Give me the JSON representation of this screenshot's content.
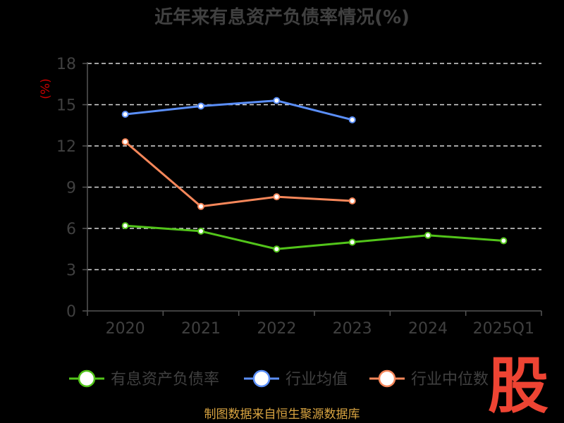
{
  "chart_data": {
    "type": "line",
    "title": "近年来有息资产负债率情况(%)",
    "ylabel": "(%)",
    "categories": [
      "2020",
      "2021",
      "2022",
      "2023",
      "2024",
      "2025Q1"
    ],
    "ylim": [
      0,
      18
    ],
    "yticks": [
      0,
      3,
      6,
      9,
      12,
      15,
      18
    ],
    "grid": true,
    "legend_position": "bottom",
    "series": [
      {
        "name": "有息资产负债率",
        "color": "#52c41a",
        "values": [
          6.2,
          5.8,
          4.5,
          5.0,
          5.5,
          5.1
        ]
      },
      {
        "name": "行业均值",
        "color": "#5b8ff9",
        "values": [
          14.3,
          14.9,
          15.3,
          13.9,
          null,
          null
        ]
      },
      {
        "name": "行业中位数",
        "color": "#f6875a",
        "values": [
          12.3,
          7.6,
          8.3,
          8.0,
          null,
          null
        ]
      }
    ]
  },
  "watermark_text": "股",
  "source": "制图数据来自恒生聚源数据库"
}
